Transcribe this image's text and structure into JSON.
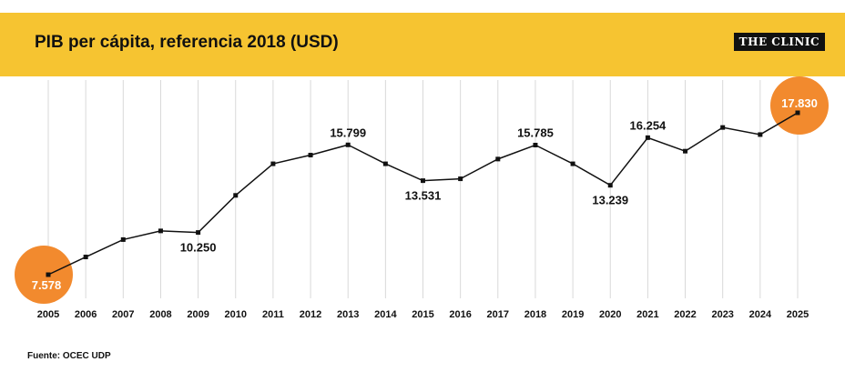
{
  "header": {
    "title": "PIB  per  cápita, referencia 2018  (USD)",
    "logo": "THE CLINIC"
  },
  "footer": {
    "source": "Fuente: OCEC UDP"
  },
  "colors": {
    "header_bg": "#f6c431",
    "highlight": "#f28a2e",
    "line": "#111111",
    "grid": "#d9d9d9"
  },
  "chart_data": {
    "type": "line",
    "title": "PIB  per  cápita, referencia 2018  (USD)",
    "xlabel": "",
    "ylabel": "",
    "grid": "vertical",
    "ylim": [
      6000,
      19000
    ],
    "x": [
      "2005",
      "2006",
      "2007",
      "2008",
      "2009",
      "2010",
      "2011",
      "2012",
      "2013",
      "2014",
      "2015",
      "2016",
      "2017",
      "2018",
      "2019",
      "2020",
      "2021",
      "2022",
      "2023",
      "2024",
      "2025"
    ],
    "values": [
      7578,
      8700,
      9800,
      10350,
      10250,
      12600,
      14600,
      15150,
      15799,
      14600,
      13531,
      13650,
      14900,
      15785,
      14600,
      13239,
      16254,
      15400,
      16900,
      16450,
      17830
    ],
    "labels": [
      {
        "x": "2005",
        "text": "7.578",
        "highlight": true
      },
      {
        "x": "2009",
        "text": "10.250"
      },
      {
        "x": "2013",
        "text": "15.799"
      },
      {
        "x": "2015",
        "text": "13.531"
      },
      {
        "x": "2018",
        "text": "15.785"
      },
      {
        "x": "2020",
        "text": "13.239"
      },
      {
        "x": "2021",
        "text": "16.254"
      },
      {
        "x": "2025",
        "text": "17.830",
        "highlight": true
      }
    ]
  }
}
